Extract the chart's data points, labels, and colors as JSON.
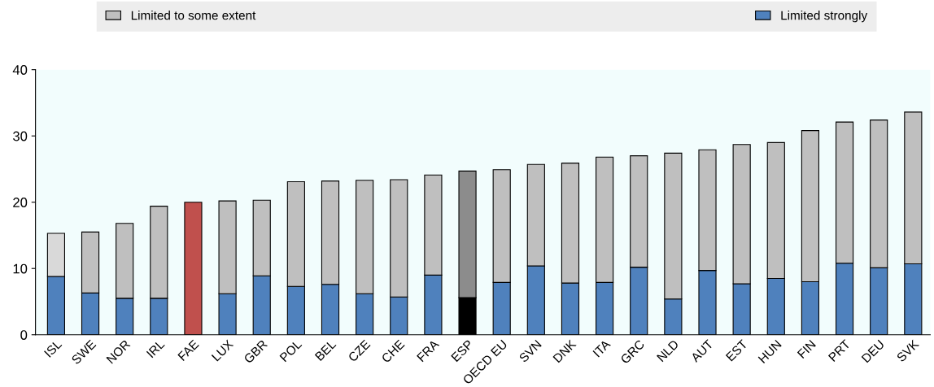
{
  "chart_data": {
    "type": "bar",
    "stacked": true,
    "categories": [
      "ISL",
      "SWE",
      "NOR",
      "IRL",
      "FAE",
      "LUX",
      "GBR",
      "POL",
      "BEL",
      "CZE",
      "CHE",
      "FRA",
      "ESP",
      "OECD EU",
      "SVN",
      "DNK",
      "ITA",
      "GRC",
      "NLD",
      "AUT",
      "EST",
      "HUN",
      "FIN",
      "PRT",
      "DEU",
      "SVK"
    ],
    "series": [
      {
        "name": "Limited strongly",
        "color": "#4f81bd",
        "colors": [
          "#4f81bd",
          "#4f81bd",
          "#4f81bd",
          "#4f81bd",
          "#c0504d",
          "#4f81bd",
          "#4f81bd",
          "#4f81bd",
          "#4f81bd",
          "#4f81bd",
          "#4f81bd",
          "#4f81bd",
          "#000000",
          "#4f81bd",
          "#4f81bd",
          "#4f81bd",
          "#4f81bd",
          "#4f81bd",
          "#4f81bd",
          "#4f81bd",
          "#4f81bd",
          "#4f81bd",
          "#4f81bd",
          "#4f81bd",
          "#4f81bd",
          "#4f81bd"
        ],
        "values": [
          8.8,
          6.3,
          5.5,
          5.5,
          20.0,
          6.2,
          8.9,
          7.3,
          7.6,
          6.2,
          5.7,
          9.0,
          5.6,
          7.9,
          10.4,
          7.8,
          7.9,
          10.2,
          5.4,
          9.7,
          7.7,
          8.5,
          8.0,
          10.8,
          10.1,
          10.7
        ]
      },
      {
        "name": "Limited to some extent",
        "color": "#bfbfbf",
        "colors": [
          "#d9d9d9",
          "#bfbfbf",
          "#bfbfbf",
          "#bfbfbf",
          "#bfbfbf",
          "#bfbfbf",
          "#bfbfbf",
          "#bfbfbf",
          "#bfbfbf",
          "#bfbfbf",
          "#bfbfbf",
          "#bfbfbf",
          "#8c8c8c",
          "#bfbfbf",
          "#bfbfbf",
          "#bfbfbf",
          "#bfbfbf",
          "#bfbfbf",
          "#bfbfbf",
          "#bfbfbf",
          "#bfbfbf",
          "#bfbfbf",
          "#bfbfbf",
          "#bfbfbf",
          "#bfbfbf",
          "#bfbfbf"
        ],
        "values": [
          6.5,
          9.2,
          11.3,
          13.9,
          null,
          14.0,
          11.4,
          15.8,
          15.6,
          17.1,
          17.7,
          15.1,
          19.1,
          17.0,
          15.3,
          18.1,
          18.9,
          16.8,
          22.0,
          18.2,
          21.0,
          20.5,
          22.8,
          21.3,
          22.3,
          22.9
        ]
      }
    ],
    "ylim": [
      0,
      40
    ],
    "yticks": [
      0,
      10,
      20,
      30,
      40
    ],
    "grid": false,
    "legend": "top"
  }
}
